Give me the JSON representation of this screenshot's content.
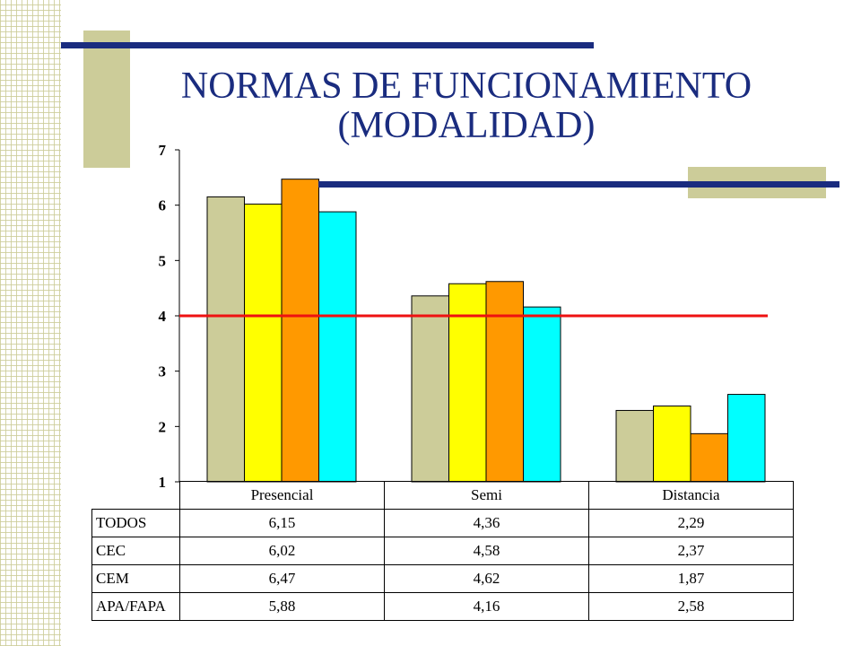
{
  "title": {
    "line1": "NORMAS DE FUNCIONAMIENTO",
    "line2": "(MODALIDAD)"
  },
  "colors": {
    "title": "#1a2c7f",
    "accent_line": "#1a2c7f",
    "accent_block": "#cccc99",
    "reference_line": "#ee1111"
  },
  "chart_data": {
    "type": "bar",
    "categories": [
      "Presencial",
      "Semi",
      "Distancia"
    ],
    "series": [
      {
        "name": "TODOS",
        "values": [
          6.15,
          4.36,
          2.29
        ],
        "color": "#cccc99",
        "labels": [
          "6,15",
          "4,36",
          "2,29"
        ]
      },
      {
        "name": "CEC",
        "values": [
          6.02,
          4.58,
          2.37
        ],
        "color": "#ffff00",
        "labels": [
          "6,02",
          "4,58",
          "2,37"
        ]
      },
      {
        "name": "CEM",
        "values": [
          6.47,
          4.62,
          1.87
        ],
        "color": "#ff9900",
        "labels": [
          "6,47",
          "4,62",
          "1,87"
        ]
      },
      {
        "name": "APA/FAPA",
        "values": [
          5.88,
          4.16,
          2.58
        ],
        "color": "#00ffff",
        "labels": [
          "5,88",
          "4,16",
          "2,58"
        ]
      }
    ],
    "ylim": [
      1,
      7
    ],
    "yticks": [
      "1",
      "2",
      "3",
      "4",
      "5",
      "6",
      "7"
    ],
    "reference_line": 4,
    "grid": false,
    "legend": "data-table-below"
  }
}
